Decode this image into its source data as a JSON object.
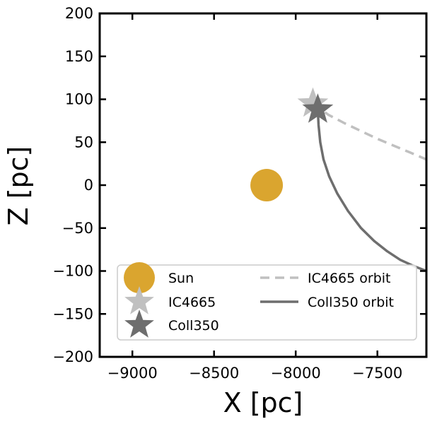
{
  "chart_data": {
    "type": "scatter",
    "title": "",
    "xlabel": "X [pc]",
    "ylabel": "Z [pc]",
    "xlim": [
      -9200,
      -7200
    ],
    "ylim": [
      -200,
      200
    ],
    "x_ticks": [
      -9000,
      -8500,
      -8000,
      -7500
    ],
    "x_tick_labels": [
      "−9000",
      "−8500",
      "−8000",
      "−7500"
    ],
    "y_ticks": [
      200,
      150,
      100,
      50,
      0,
      -50,
      -100,
      -150,
      -200
    ],
    "y_tick_labels": [
      "200",
      "150",
      "100",
      "50",
      "0",
      "−50",
      "−100",
      "−150",
      "−200"
    ],
    "grid": false,
    "legend_position": "bottom",
    "points": [
      {
        "name": "Sun",
        "x": -8178,
        "y": 0,
        "marker": "circle",
        "color": "#DAA52F"
      },
      {
        "name": "IC4665",
        "x": -7895,
        "y": 95,
        "marker": "star",
        "color": "#C0C0C0"
      },
      {
        "name": "Coll350",
        "x": -7865,
        "y": 88,
        "marker": "star",
        "color": "#6E6E6E"
      }
    ],
    "series": [
      {
        "name": "IC4665 orbit",
        "style": "dashed",
        "color": "#C0C0C0",
        "x": [
          -7895,
          -7800,
          -7700,
          -7600,
          -7500,
          -7400,
          -7300,
          -7200
        ],
        "y": [
          95,
          82,
          72,
          63,
          54,
          46,
          38,
          30
        ]
      },
      {
        "name": "Coll350 orbit",
        "style": "solid",
        "color": "#6E6E6E",
        "x": [
          -7865,
          -7860,
          -7850,
          -7830,
          -7795,
          -7745,
          -7680,
          -7600,
          -7520,
          -7440,
          -7360,
          -7280,
          -7200
        ],
        "y": [
          88,
          70,
          50,
          30,
          10,
          -10,
          -30,
          -50,
          -65,
          -77,
          -87,
          -94,
          -100
        ]
      }
    ],
    "legend": [
      {
        "label": "Sun",
        "marker": "circle",
        "color": "#DAA52F"
      },
      {
        "label": "IC4665",
        "marker": "star",
        "color": "#C0C0C0"
      },
      {
        "label": "Coll350",
        "marker": "star",
        "color": "#6E6E6E"
      },
      {
        "label": "IC4665 orbit",
        "line": "dashed",
        "color": "#C0C0C0"
      },
      {
        "label": "Coll350 orbit",
        "line": "solid",
        "color": "#6E6E6E"
      }
    ]
  }
}
